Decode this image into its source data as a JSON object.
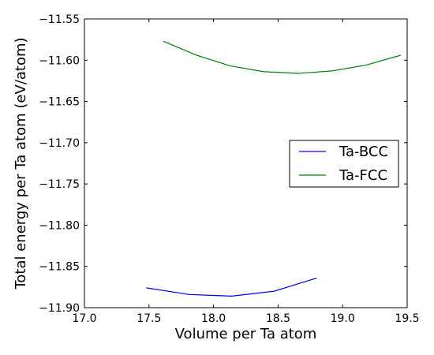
{
  "chart_data": {
    "type": "line",
    "title": "",
    "xlabel": "Volume per Ta atom",
    "ylabel": "Total energy per Ta atom (eV/atom)",
    "xlim": [
      17.0,
      19.5
    ],
    "ylim": [
      -11.9,
      -11.55
    ],
    "xticks": [
      17.0,
      17.5,
      18.0,
      18.5,
      19.0,
      19.5
    ],
    "xtick_labels": [
      "17.0",
      "17.5",
      "18.0",
      "18.5",
      "19.0",
      "19.5"
    ],
    "yticks": [
      -11.55,
      -11.6,
      -11.65,
      -11.7,
      -11.75,
      -11.8,
      -11.85,
      -11.9
    ],
    "ytick_labels": [
      "−11.55",
      "−11.60",
      "−11.65",
      "−11.70",
      "−11.75",
      "−11.80",
      "−11.85",
      "−11.90"
    ],
    "grid": false,
    "legend_position": "center-right",
    "series": [
      {
        "name": "Ta-BCC",
        "color": "#0000ff",
        "x": [
          17.48,
          17.81,
          18.14,
          18.47,
          18.8
        ],
        "y": [
          -11.876,
          -11.884,
          -11.886,
          -11.88,
          -11.864
        ]
      },
      {
        "name": "Ta-FCC",
        "color": "#008000",
        "x": [
          17.61,
          17.87,
          18.13,
          18.39,
          18.66,
          18.92,
          19.18,
          19.45
        ],
        "y": [
          -11.577,
          -11.594,
          -11.607,
          -11.614,
          -11.616,
          -11.613,
          -11.606,
          -11.594
        ]
      }
    ]
  }
}
